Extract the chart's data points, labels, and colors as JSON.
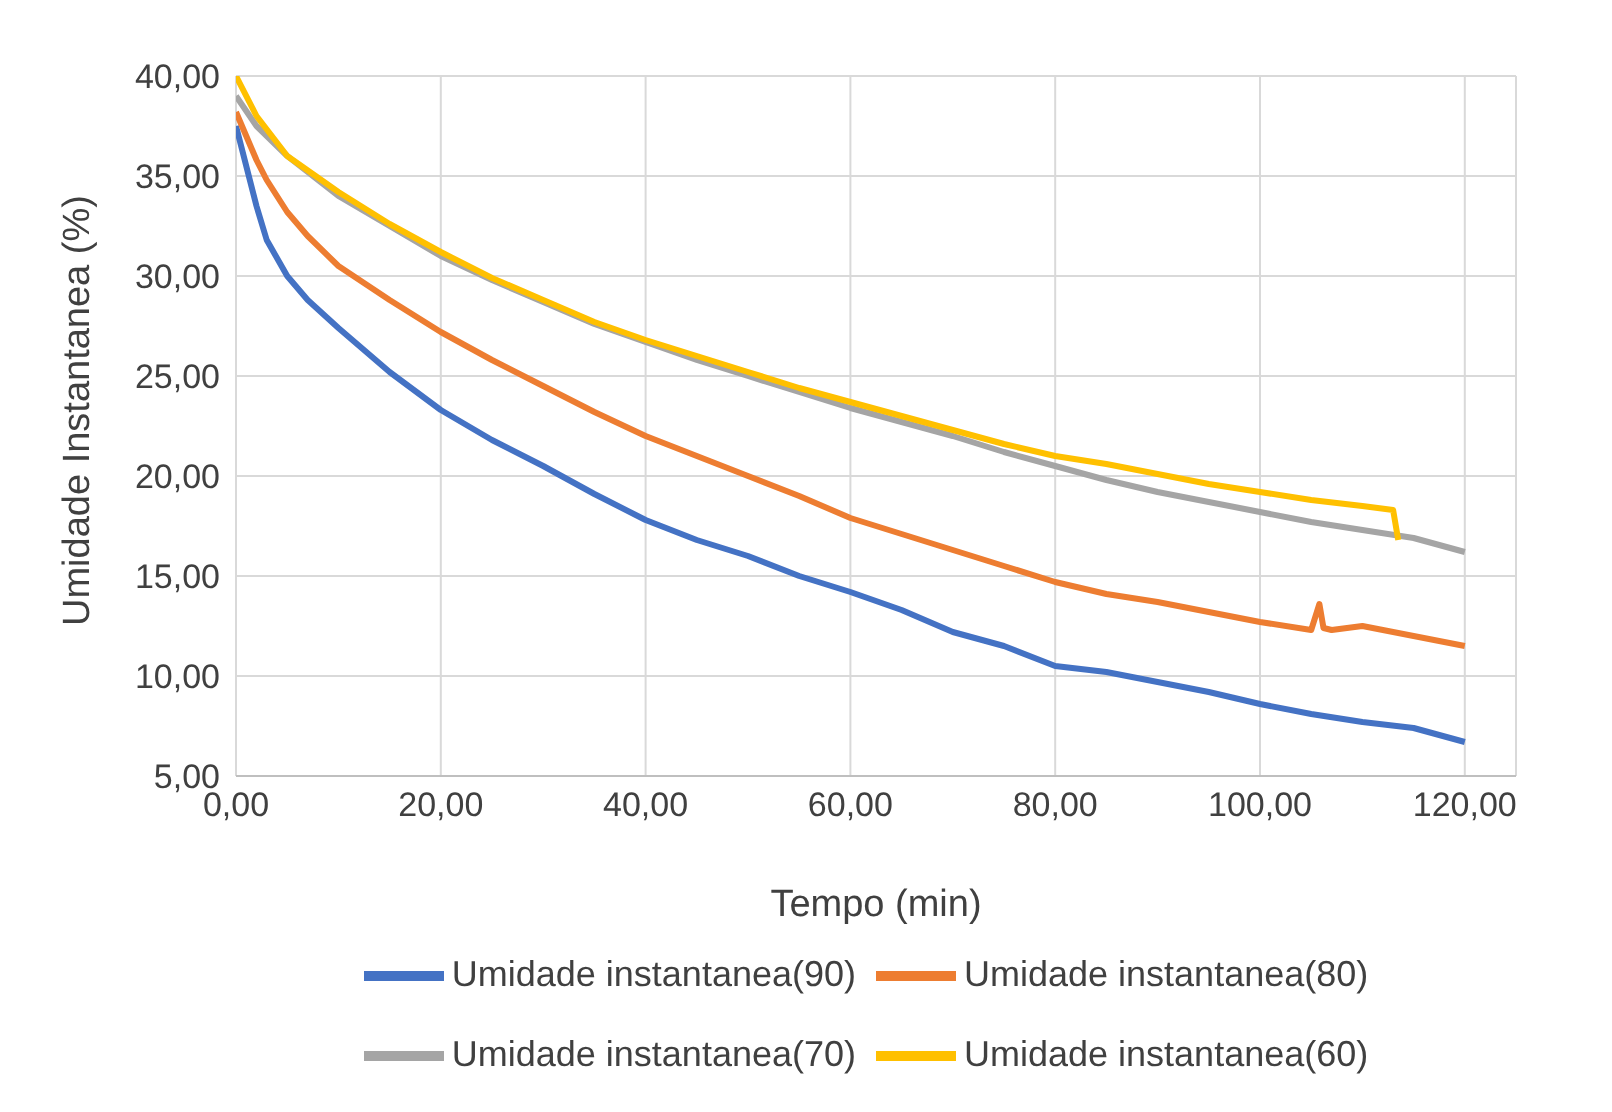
{
  "chart_data": {
    "type": "line",
    "xlabel": "Tempo (min)",
    "ylabel": "Umidade Instantanea (%)",
    "xlim": [
      0,
      125
    ],
    "xticks": [
      {
        "value": 0,
        "label": "0,00"
      },
      {
        "value": 20,
        "label": "20,00"
      },
      {
        "value": 40,
        "label": "40,00"
      },
      {
        "value": 60,
        "label": "60,00"
      },
      {
        "value": 80,
        "label": "80,00"
      },
      {
        "value": 100,
        "label": "100,00"
      },
      {
        "value": 120,
        "label": "120,00"
      }
    ],
    "ylim": [
      5,
      40
    ],
    "yticks": [
      {
        "value": 5,
        "label": "5,00"
      },
      {
        "value": 10,
        "label": "10,00"
      },
      {
        "value": 15,
        "label": "15,00"
      },
      {
        "value": 20,
        "label": "20,00"
      },
      {
        "value": 25,
        "label": "25,00"
      },
      {
        "value": 30,
        "label": "30,00"
      },
      {
        "value": 35,
        "label": "35,00"
      },
      {
        "value": 40,
        "label": "40,00"
      }
    ],
    "grid": true,
    "legend": "bottom",
    "marker": "none",
    "line_style": "solid",
    "series": [
      {
        "name": "Umidade instantanea(90)",
        "color": "#4472c4",
        "x": [
          0,
          1,
          2,
          3,
          5,
          7,
          10,
          15,
          20,
          25,
          30,
          35,
          40,
          45,
          50,
          55,
          60,
          65,
          70,
          75,
          80,
          85,
          90,
          95,
          100,
          105,
          110,
          115,
          120
        ],
        "values": [
          37.5,
          35.5,
          33.5,
          31.8,
          30,
          28.8,
          27.4,
          25.2,
          23.3,
          21.8,
          20.5,
          19.1,
          17.8,
          16.8,
          16,
          15,
          14.2,
          13.3,
          12.2,
          11.5,
          10.5,
          10.2,
          9.7,
          9.2,
          8.6,
          8.1,
          7.7,
          7.4,
          6.7
        ]
      },
      {
        "name": "Umidade instantanea(80)",
        "color": "#ed7d31",
        "x": [
          0,
          1,
          2,
          3,
          5,
          7,
          10,
          15,
          20,
          25,
          30,
          35,
          40,
          45,
          50,
          55,
          60,
          65,
          70,
          75,
          80,
          85,
          90,
          95,
          100,
          105,
          105.8,
          106.2,
          107,
          110,
          115,
          120
        ],
        "values": [
          38.2,
          37,
          35.8,
          34.8,
          33.2,
          32,
          30.5,
          28.8,
          27.2,
          25.8,
          24.5,
          23.2,
          22,
          21,
          20,
          19,
          17.9,
          17.1,
          16.3,
          15.5,
          14.7,
          14.1,
          13.7,
          13.2,
          12.7,
          12.3,
          13.6,
          12.4,
          12.3,
          12.5,
          12,
          11.5
        ]
      },
      {
        "name": "Umidade instantanea(70)",
        "color": "#a5a5a5",
        "x": [
          0,
          2,
          5,
          10,
          15,
          20,
          25,
          30,
          35,
          40,
          45,
          50,
          55,
          60,
          65,
          70,
          75,
          80,
          85,
          90,
          95,
          100,
          105,
          110,
          115,
          120
        ],
        "values": [
          39,
          37.5,
          36,
          34,
          32.5,
          31,
          29.8,
          28.7,
          27.6,
          26.7,
          25.8,
          25,
          24.2,
          23.4,
          22.7,
          22,
          21.2,
          20.5,
          19.8,
          19.2,
          18.7,
          18.2,
          17.7,
          17.3,
          16.9,
          16.2
        ]
      },
      {
        "name": "Umidade instantanea(60)",
        "color": "#ffc000",
        "x": [
          0,
          2,
          5,
          10,
          15,
          20,
          25,
          30,
          35,
          40,
          45,
          50,
          55,
          60,
          65,
          70,
          75,
          80,
          85,
          90,
          95,
          100,
          105,
          110,
          113,
          113.5
        ],
        "values": [
          40,
          38,
          36,
          34.2,
          32.6,
          31.2,
          29.9,
          28.8,
          27.7,
          26.8,
          26,
          25.2,
          24.4,
          23.7,
          23,
          22.3,
          21.6,
          21,
          20.6,
          20.1,
          19.6,
          19.2,
          18.8,
          18.5,
          18.3,
          16.8
        ]
      }
    ]
  }
}
